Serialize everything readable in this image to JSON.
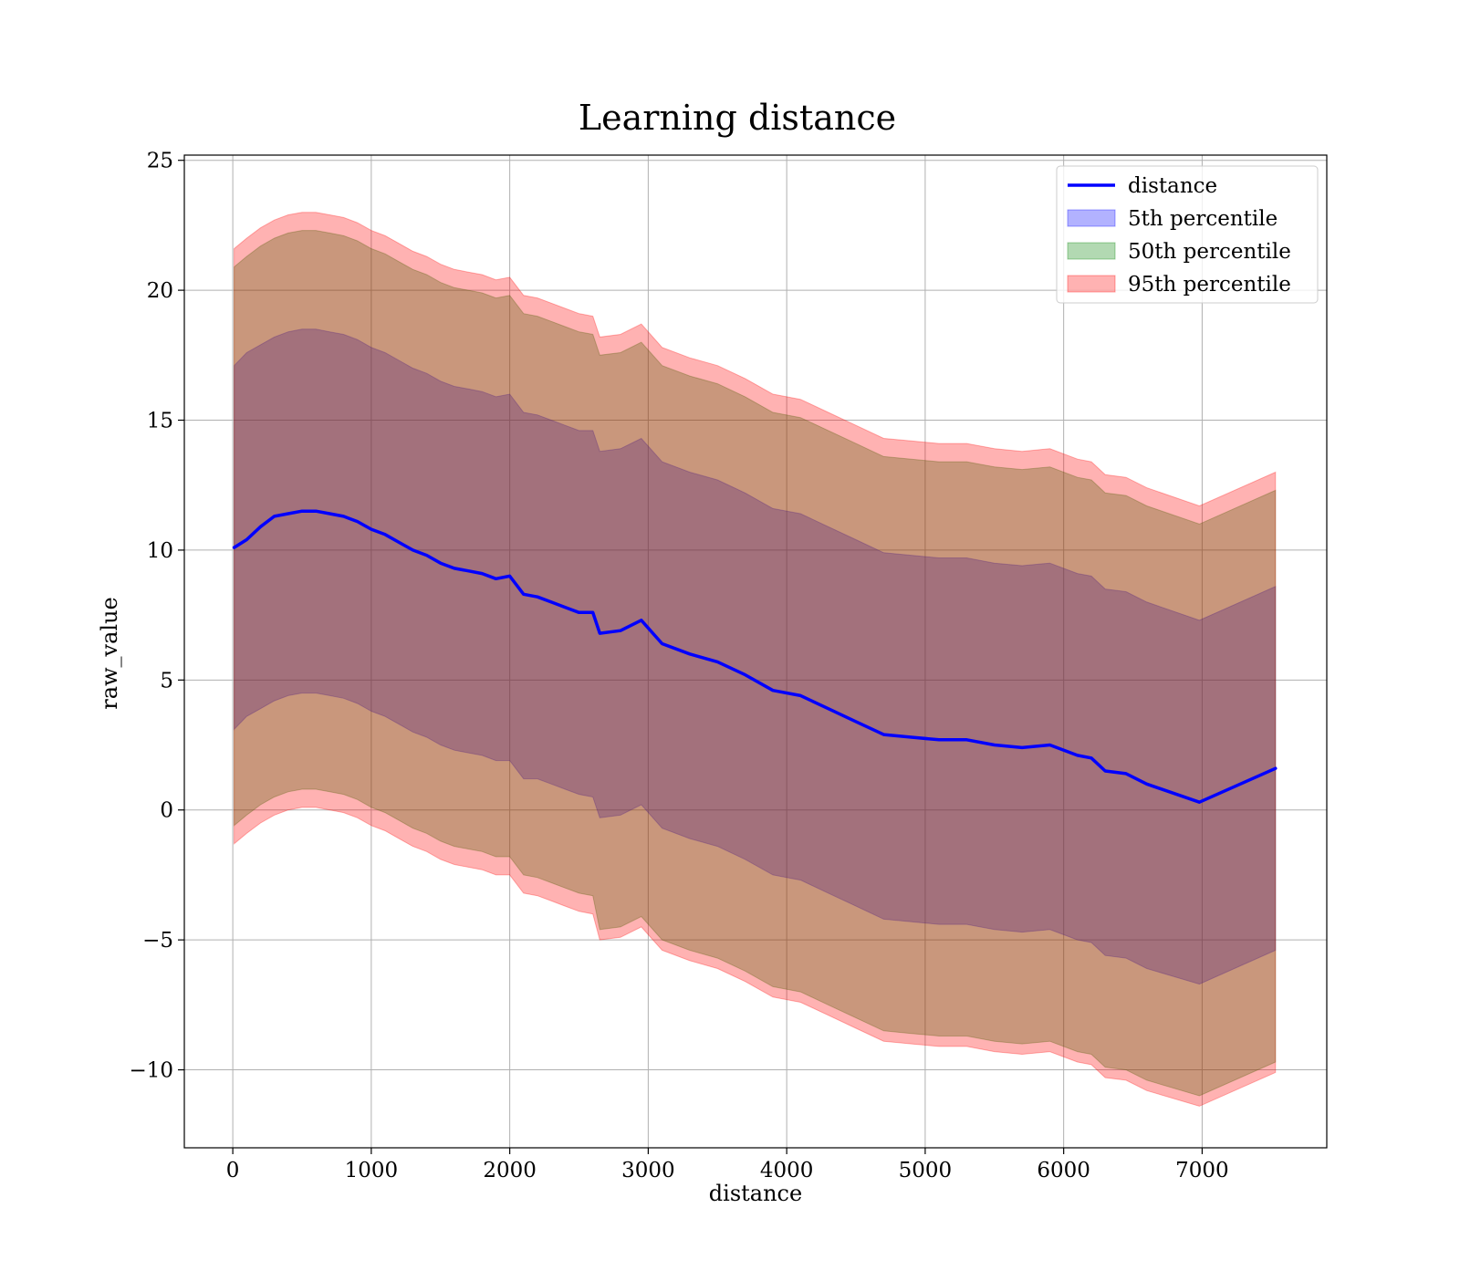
{
  "chart_data": {
    "type": "line",
    "title": "Learning distance",
    "xlabel": "distance",
    "ylabel": "raw_value",
    "xlim": [
      -350,
      7900
    ],
    "ylim": [
      -13,
      25.2
    ],
    "xticks": [
      0,
      1000,
      2000,
      3000,
      4000,
      5000,
      6000,
      7000
    ],
    "yticks": [
      -10,
      -5,
      0,
      5,
      10,
      15,
      20,
      25
    ],
    "xtick_labels": [
      "0",
      "1000",
      "2000",
      "3000",
      "4000",
      "5000",
      "6000",
      "7000"
    ],
    "ytick_labels": [
      "−10",
      "−5",
      "0",
      "5",
      "10",
      "15",
      "20",
      "25"
    ],
    "grid": true,
    "legend_placement": "top-right",
    "legend": [
      "distance",
      "5th percentile",
      "50th percentile",
      "95th percentile"
    ],
    "colors": {
      "line": "#0000ff",
      "p5": "#0000ff",
      "p50": "#008000",
      "p95": "#ff0000",
      "grid": "#b0b0b0"
    },
    "x": [
      10,
      100,
      200,
      300,
      400,
      500,
      600,
      700,
      800,
      900,
      1000,
      1100,
      1200,
      1300,
      1400,
      1500,
      1600,
      1700,
      1800,
      1900,
      2000,
      2100,
      2200,
      2300,
      2400,
      2500,
      2600,
      2650,
      2800,
      2950,
      3100,
      3300,
      3500,
      3700,
      3900,
      4100,
      4300,
      4500,
      4700,
      4900,
      5100,
      5300,
      5500,
      5700,
      5900,
      6100,
      6200,
      6300,
      6450,
      6600,
      6980,
      7530
    ],
    "series": [
      {
        "name": "distance",
        "role": "line",
        "values": [
          10.1,
          10.4,
          10.9,
          11.3,
          11.4,
          11.5,
          11.5,
          11.4,
          11.3,
          11.1,
          10.8,
          10.6,
          10.3,
          10.0,
          9.8,
          9.5,
          9.3,
          9.2,
          9.1,
          8.9,
          9.0,
          8.3,
          8.2,
          8.0,
          7.8,
          7.6,
          7.6,
          6.8,
          6.9,
          7.3,
          6.4,
          6.0,
          5.7,
          5.2,
          4.6,
          4.4,
          3.9,
          3.4,
          2.9,
          2.8,
          2.7,
          2.7,
          2.5,
          2.4,
          2.5,
          2.1,
          2.0,
          1.5,
          1.4,
          1.0,
          0.3,
          1.6
        ]
      },
      {
        "name": "5th percentile",
        "role": "band",
        "lower": [
          3.1,
          3.6,
          3.9,
          4.2,
          4.4,
          4.5,
          4.5,
          4.4,
          4.3,
          4.1,
          3.8,
          3.6,
          3.3,
          3.0,
          2.8,
          2.5,
          2.3,
          2.2,
          2.1,
          1.9,
          1.9,
          1.2,
          1.2,
          1.0,
          0.8,
          0.6,
          0.5,
          -0.3,
          -0.2,
          0.2,
          -0.7,
          -1.1,
          -1.4,
          -1.9,
          -2.5,
          -2.7,
          -3.2,
          -3.7,
          -4.2,
          -4.3,
          -4.4,
          -4.4,
          -4.6,
          -4.7,
          -4.6,
          -5.0,
          -5.1,
          -5.6,
          -5.7,
          -6.1,
          -6.7,
          -5.4
        ],
        "upper": [
          17.1,
          17.6,
          17.9,
          18.2,
          18.4,
          18.5,
          18.5,
          18.4,
          18.3,
          18.1,
          17.8,
          17.6,
          17.3,
          17.0,
          16.8,
          16.5,
          16.3,
          16.2,
          16.1,
          15.9,
          16.0,
          15.3,
          15.2,
          15.0,
          14.8,
          14.6,
          14.6,
          13.8,
          13.9,
          14.3,
          13.4,
          13.0,
          12.7,
          12.2,
          11.6,
          11.4,
          10.9,
          10.4,
          9.9,
          9.8,
          9.7,
          9.7,
          9.5,
          9.4,
          9.5,
          9.1,
          9.0,
          8.5,
          8.4,
          8.0,
          7.3,
          8.6
        ]
      },
      {
        "name": "50th percentile",
        "role": "band",
        "lower": [
          -0.6,
          -0.2,
          0.2,
          0.5,
          0.7,
          0.8,
          0.8,
          0.7,
          0.6,
          0.4,
          0.1,
          -0.1,
          -0.4,
          -0.7,
          -0.9,
          -1.2,
          -1.4,
          -1.5,
          -1.6,
          -1.8,
          -1.8,
          -2.5,
          -2.6,
          -2.8,
          -3.0,
          -3.2,
          -3.3,
          -4.6,
          -4.5,
          -4.1,
          -5.0,
          -5.4,
          -5.7,
          -6.2,
          -6.8,
          -7.0,
          -7.5,
          -8.0,
          -8.5,
          -8.6,
          -8.7,
          -8.7,
          -8.9,
          -9.0,
          -8.9,
          -9.3,
          -9.4,
          -9.9,
          -10.0,
          -10.4,
          -11.0,
          -9.7
        ],
        "upper": [
          20.9,
          21.3,
          21.7,
          22.0,
          22.2,
          22.3,
          22.3,
          22.2,
          22.1,
          21.9,
          21.6,
          21.4,
          21.1,
          20.8,
          20.6,
          20.3,
          20.1,
          20.0,
          19.9,
          19.7,
          19.8,
          19.1,
          19.0,
          18.8,
          18.6,
          18.4,
          18.3,
          17.5,
          17.6,
          18.0,
          17.1,
          16.7,
          16.4,
          15.9,
          15.3,
          15.1,
          14.6,
          14.1,
          13.6,
          13.5,
          13.4,
          13.4,
          13.2,
          13.1,
          13.2,
          12.8,
          12.7,
          12.2,
          12.1,
          11.7,
          11.0,
          12.3
        ]
      },
      {
        "name": "95th percentile",
        "role": "band",
        "lower": [
          -1.3,
          -0.9,
          -0.5,
          -0.2,
          0.0,
          0.1,
          0.1,
          0.0,
          -0.1,
          -0.3,
          -0.6,
          -0.8,
          -1.1,
          -1.4,
          -1.6,
          -1.9,
          -2.1,
          -2.2,
          -2.3,
          -2.5,
          -2.5,
          -3.2,
          -3.3,
          -3.5,
          -3.7,
          -3.9,
          -4.0,
          -5.0,
          -4.9,
          -4.5,
          -5.4,
          -5.8,
          -6.1,
          -6.6,
          -7.2,
          -7.4,
          -7.9,
          -8.4,
          -8.9,
          -9.0,
          -9.1,
          -9.1,
          -9.3,
          -9.4,
          -9.3,
          -9.7,
          -9.8,
          -10.3,
          -10.4,
          -10.8,
          -11.4,
          -10.1
        ],
        "upper": [
          21.6,
          22.0,
          22.4,
          22.7,
          22.9,
          23.0,
          23.0,
          22.9,
          22.8,
          22.6,
          22.3,
          22.1,
          21.8,
          21.5,
          21.3,
          21.0,
          20.8,
          20.7,
          20.6,
          20.4,
          20.5,
          19.8,
          19.7,
          19.5,
          19.3,
          19.1,
          19.0,
          18.2,
          18.3,
          18.7,
          17.8,
          17.4,
          17.1,
          16.6,
          16.0,
          15.8,
          15.3,
          14.8,
          14.3,
          14.2,
          14.1,
          14.1,
          13.9,
          13.8,
          13.9,
          13.5,
          13.4,
          12.9,
          12.8,
          12.4,
          11.7,
          13.0
        ]
      }
    ]
  }
}
